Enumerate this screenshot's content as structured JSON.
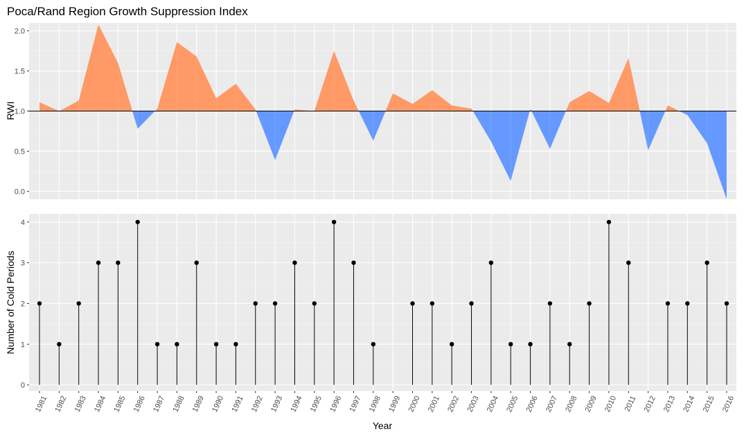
{
  "chart_data": [
    {
      "type": "area",
      "title": "Poca/Rand Region Growth Suppression Index",
      "xlabel": "",
      "ylabel": "RWI",
      "ylim": [
        -0.1,
        2.1
      ],
      "yticks": [
        "0.0",
        "0.5",
        "1.0",
        "1.5",
        "2.0"
      ],
      "ytick_values": [
        0.0,
        0.5,
        1.0,
        1.5,
        2.0
      ],
      "baseline": 1.0,
      "grid": true,
      "colors": {
        "above": "#FF9966",
        "below": "#6699FF",
        "panel": "#EBEBEB",
        "baseline": "#000000"
      },
      "x": [
        1981,
        1982,
        1983,
        1984,
        1985,
        1986,
        1987,
        1988,
        1989,
        1990,
        1991,
        1992,
        1993,
        1994,
        1995,
        1996,
        1997,
        1998,
        1999,
        2000,
        2001,
        2002,
        2003,
        2004,
        2005,
        2006,
        2007,
        2008,
        2009,
        2010,
        2011,
        2012,
        2013,
        2014,
        2015,
        2016
      ],
      "values": [
        1.11,
        1.0,
        1.13,
        2.08,
        1.6,
        0.78,
        1.03,
        1.86,
        1.68,
        1.16,
        1.34,
        1.02,
        0.39,
        1.02,
        1.0,
        1.75,
        1.13,
        0.63,
        1.22,
        1.09,
        1.26,
        1.07,
        1.03,
        0.62,
        0.13,
        1.03,
        0.53,
        1.11,
        1.25,
        1.1,
        1.66,
        0.51,
        1.07,
        0.95,
        0.6,
        -0.1
      ]
    },
    {
      "type": "lollipop",
      "title": "",
      "xlabel": "Year",
      "ylabel": "Number of Cold Periods",
      "ylim": [
        -0.15,
        4.2
      ],
      "yticks": [
        "0",
        "1",
        "2",
        "3",
        "4"
      ],
      "ytick_values": [
        0,
        1,
        2,
        3,
        4
      ],
      "grid": true,
      "colors": {
        "stem": "#000000",
        "point": "#000000",
        "panel": "#EBEBEB"
      },
      "x": [
        1981,
        1982,
        1983,
        1984,
        1985,
        1986,
        1987,
        1988,
        1989,
        1990,
        1991,
        1992,
        1993,
        1994,
        1995,
        1996,
        1997,
        1998,
        2000,
        2001,
        2002,
        2003,
        2004,
        2005,
        2006,
        2007,
        2008,
        2009,
        2010,
        2011,
        2013,
        2014,
        2015,
        2016
      ],
      "values": [
        2,
        1,
        2,
        3,
        3,
        4,
        1,
        1,
        3,
        1,
        1,
        2,
        2,
        3,
        2,
        4,
        3,
        1,
        2,
        2,
        1,
        2,
        3,
        1,
        1,
        2,
        1,
        2,
        4,
        3,
        2,
        2,
        3,
        2
      ],
      "xticks": [
        "1981",
        "1982",
        "1983",
        "1984",
        "1985",
        "1986",
        "1987",
        "1988",
        "1989",
        "1990",
        "1991",
        "1992",
        "1993",
        "1994",
        "1995",
        "1996",
        "1997",
        "1998",
        "1999",
        "2000",
        "2001",
        "2002",
        "2003",
        "2004",
        "2005",
        "2006",
        "2007",
        "2008",
        "2009",
        "2010",
        "2011",
        "2012",
        "2013",
        "2014",
        "2015",
        "2016"
      ]
    }
  ]
}
